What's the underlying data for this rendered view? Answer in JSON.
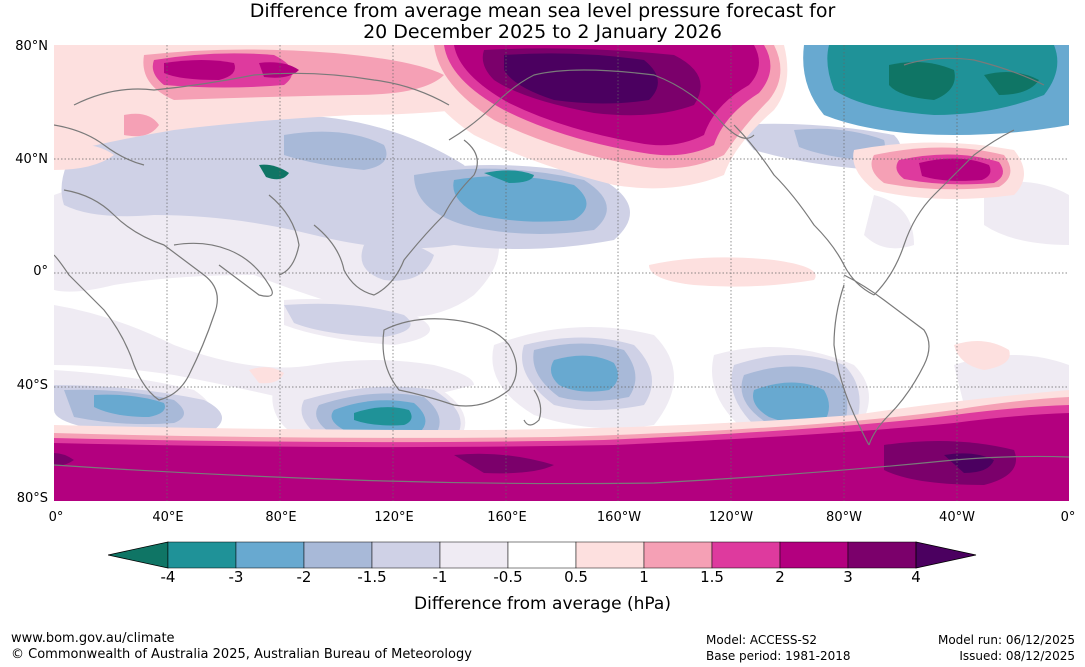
{
  "title_line1": "Difference from average mean sea level pressure forecast for",
  "title_line2": "20 December 2025 to 2 January 2026",
  "lat_labels": [
    "80°N",
    "40°N",
    "0°",
    "40°S",
    "80°S"
  ],
  "lon_labels": [
    "0°",
    "40°E",
    "80°E",
    "120°E",
    "160°E",
    "160°W",
    "120°W",
    "80°W",
    "40°W",
    "0°"
  ],
  "colorbar": {
    "ticks": [
      "-4",
      "-3",
      "-2",
      "-1.5",
      "-1",
      "-0.5",
      "0.5",
      "1",
      "1.5",
      "2",
      "3",
      "4"
    ],
    "colors": [
      "#0f7565",
      "#1f9298",
      "#68a9d0",
      "#a8b9d8",
      "#cfd1e6",
      "#efebf3",
      "#ffffff",
      "#fde0df",
      "#f5a0b5",
      "#de3a9e",
      "#b3007f",
      "#7b006b",
      "#4b0060"
    ],
    "label": "Difference from average (hPa)"
  },
  "footer": {
    "website": "www.bom.gov.au/climate",
    "copyright": "© Commonwealth of Australia 2025, Australian Bureau of Meteorology",
    "model": "Model: ACCESS-S2",
    "base_period": "Base period: 1981-2018",
    "model_run": "Model run: 06/12/2025",
    "issued": "Issued: 08/12/2025"
  }
}
